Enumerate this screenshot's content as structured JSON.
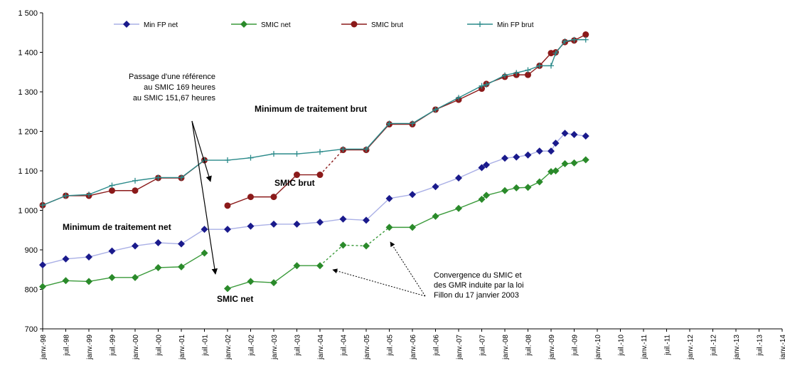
{
  "chart_data": {
    "type": "line",
    "ylim": [
      700,
      1500
    ],
    "yticks": [
      700,
      800,
      900,
      1000,
      1100,
      1200,
      1300,
      1400,
      1500
    ],
    "ytick_labels": [
      "700",
      "800",
      "900",
      "1 000",
      "1 100",
      "1 200",
      "1 300",
      "1 400",
      "1 500"
    ],
    "x_categories": [
      "janv.-98",
      "juil.-98",
      "janv.-99",
      "juil.-99",
      "janv.-00",
      "juil.-00",
      "janv.-01",
      "juil.-01",
      "janv.-02",
      "juil.-02",
      "janv.-03",
      "juil.-03",
      "janv.-04",
      "juil.-04",
      "janv.-05",
      "juil.-05",
      "janv.-06",
      "juil.-06",
      "janv.-07",
      "juil.-07",
      "janv.-08",
      "juil.-08",
      "janv.-09",
      "juil.-09",
      "janv.-10",
      "juil.-10",
      "janv.-11",
      "juil.-11",
      "janv.-12",
      "juil.-12",
      "janv.-13",
      "juil.-13",
      "janv.-14"
    ],
    "legend": "top",
    "grid": false,
    "series": [
      {
        "name": "Min FP net",
        "color": "#aab0e6",
        "marker": "diamond",
        "marker_color": "#1a1a8c",
        "points": [
          [
            0,
            862
          ],
          [
            1,
            877
          ],
          [
            2,
            882
          ],
          [
            3,
            897
          ],
          [
            4,
            910
          ],
          [
            5,
            918
          ],
          [
            6,
            915
          ],
          [
            7,
            952
          ],
          [
            8,
            952
          ],
          [
            9,
            960
          ],
          [
            10,
            965
          ],
          [
            11,
            965
          ],
          [
            12,
            970
          ],
          [
            13,
            978
          ],
          [
            14,
            975
          ],
          [
            15,
            1030
          ],
          [
            16,
            1040
          ],
          [
            17,
            1060
          ],
          [
            18,
            1082
          ],
          [
            19,
            1108
          ],
          [
            19.2,
            1115
          ],
          [
            20,
            1132
          ],
          [
            20.5,
            1135
          ],
          [
            21,
            1140
          ],
          [
            21.5,
            1150
          ],
          [
            22,
            1150
          ],
          [
            22.2,
            1170
          ],
          [
            22.6,
            1195
          ],
          [
            23,
            1192
          ],
          [
            23.5,
            1188
          ]
        ]
      },
      {
        "name": "SMIC net",
        "color": "#3a9a3a",
        "marker": "diamond",
        "marker_color": "#2a8a2a",
        "dashed_segments": [
          [
            12,
            13
          ],
          [
            13,
            14
          ],
          [
            14,
            15
          ]
        ],
        "points": [
          [
            0,
            807
          ],
          [
            1,
            822
          ],
          [
            2,
            820
          ],
          [
            3,
            830
          ],
          [
            4,
            830
          ],
          [
            5,
            855
          ],
          [
            6,
            857
          ],
          [
            7,
            892
          ],
          null,
          [
            8,
            802
          ],
          [
            9,
            820
          ],
          [
            10,
            817
          ],
          [
            11,
            860
          ],
          [
            12,
            860
          ],
          [
            13,
            912
          ],
          [
            14,
            910
          ],
          [
            15,
            957
          ],
          [
            16,
            957
          ],
          [
            17,
            985
          ],
          [
            18,
            1005
          ],
          [
            19,
            1028
          ],
          [
            19.2,
            1038
          ],
          [
            20,
            1050
          ],
          [
            20.5,
            1057
          ],
          [
            21,
            1058
          ],
          [
            21.5,
            1072
          ],
          [
            22,
            1098
          ],
          [
            22.2,
            1100
          ],
          [
            22.6,
            1118
          ],
          [
            23,
            1120
          ],
          [
            23.5,
            1128
          ]
        ]
      },
      {
        "name": "SMIC brut",
        "color": "#8b1a1a",
        "marker": "circle",
        "marker_color": "#8b1a1a",
        "dashed_segments": [
          [
            12,
            13
          ]
        ],
        "points": [
          [
            0,
            1013
          ],
          [
            1,
            1037
          ],
          [
            2,
            1037
          ],
          [
            3,
            1050
          ],
          [
            4,
            1050
          ],
          [
            5,
            1082
          ],
          [
            6,
            1082
          ],
          [
            7,
            1127
          ],
          null,
          [
            8,
            1012
          ],
          [
            9,
            1034
          ],
          [
            10,
            1034
          ],
          [
            11,
            1090
          ],
          [
            12,
            1090
          ],
          [
            13,
            1153
          ],
          [
            14,
            1153
          ],
          [
            15,
            1218
          ],
          [
            16,
            1218
          ],
          [
            17,
            1255
          ],
          [
            18,
            1280
          ],
          [
            19,
            1308
          ],
          [
            19.2,
            1320
          ],
          [
            20,
            1338
          ],
          [
            20.5,
            1343
          ],
          [
            21,
            1343
          ],
          [
            21.5,
            1366
          ],
          [
            22,
            1398
          ],
          [
            22.2,
            1400
          ],
          [
            22.6,
            1426
          ],
          [
            23,
            1430
          ],
          [
            23.5,
            1445
          ]
        ]
      },
      {
        "name": "Min FP brut",
        "color": "#2a8a8a",
        "marker": "plus",
        "marker_color": "#2a8a8a",
        "points": [
          [
            0,
            1013
          ],
          [
            1,
            1037
          ],
          [
            2,
            1040
          ],
          [
            3,
            1063
          ],
          [
            4,
            1075
          ],
          [
            5,
            1083
          ],
          [
            6,
            1083
          ],
          [
            7,
            1127
          ],
          [
            8,
            1127
          ],
          [
            9,
            1133
          ],
          [
            10,
            1143
          ],
          [
            11,
            1143
          ],
          [
            12,
            1148
          ],
          [
            13,
            1155
          ],
          [
            14,
            1155
          ],
          [
            15,
            1220
          ],
          [
            16,
            1220
          ],
          [
            17,
            1255
          ],
          [
            18,
            1285
          ],
          [
            19,
            1315
          ],
          [
            19.2,
            1318
          ],
          [
            20,
            1342
          ],
          [
            20.5,
            1348
          ],
          [
            21,
            1355
          ],
          [
            21.5,
            1366
          ],
          [
            22,
            1366
          ],
          [
            22.2,
            1398
          ],
          [
            22.6,
            1428
          ],
          [
            23,
            1432
          ],
          [
            23.5,
            1432
          ]
        ]
      }
    ],
    "annotations": {
      "passage_line1": "Passage d'une référence",
      "passage_line2": "au SMIC 169 heures",
      "passage_line3": "au SMIC 151,67 heures",
      "min_brut": "Minimum de traitement brut",
      "smic_brut": "SMIC brut",
      "min_net": "Minimum de traitement net",
      "smic_net": "SMIC net",
      "conv_line1": "Convergence du SMIC  et",
      "conv_line2": "des GMR induite par la loi",
      "conv_line3": "Fillon du 17 janvier 2003"
    }
  }
}
